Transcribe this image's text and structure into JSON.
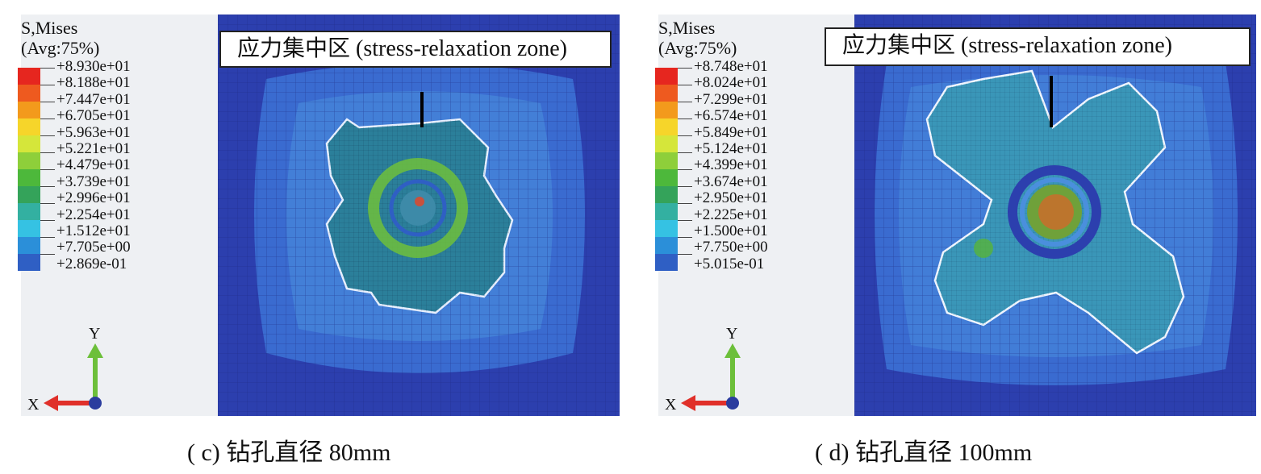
{
  "colors": {
    "scale": [
      "#e6261f",
      "#ee5a1f",
      "#f39a1c",
      "#f6d52a",
      "#d5e63a",
      "#8ecf3a",
      "#4db83b",
      "#34a35a",
      "#33b0a1",
      "#35c2e3",
      "#2b8fd9",
      "#2f5fc4",
      "#2c3fae"
    ],
    "mesh_bg": "#2c3fae",
    "mesh_mid": "#3a6bd0",
    "mesh_light": "#4a8fdd",
    "zone_fill": "#2b7f9a",
    "ring_green": "#6fbf3b",
    "ring_red": "#e0462a"
  },
  "panel_c": {
    "legend_title_line1": "S,Mises",
    "legend_title_line2": "(Avg:75%)",
    "legend_values": [
      "+8.930e+01",
      "+8.188e+01",
      "+7.447e+01",
      "+6.705e+01",
      "+5.963e+01",
      "+5.221e+01",
      "+4.479e+01",
      "+3.739e+01",
      "+2.996e+01",
      "+2.254e+01",
      "+1.512e+01",
      "+7.705e+00",
      "+2.869e-01"
    ],
    "callout": "应力集中区 (stress-relaxation zone)",
    "axis_x": "X",
    "axis_y": "Y",
    "caption": "( c)  钻孔直径 80mm"
  },
  "panel_d": {
    "legend_title_line1": "S,Mises",
    "legend_title_line2": "(Avg:75%)",
    "legend_values": [
      "+8.748e+01",
      "+8.024e+01",
      "+7.299e+01",
      "+6.574e+01",
      "+5.849e+01",
      "+5.124e+01",
      "+4.399e+01",
      "+3.674e+01",
      "+2.950e+01",
      "+2.225e+01",
      "+1.500e+01",
      "+7.750e+00",
      "+5.015e-01"
    ],
    "callout": "应力集中区 (stress-relaxation zone)",
    "axis_x": "X",
    "axis_y": "Y",
    "caption": "( d)  钻孔直径 100mm"
  }
}
